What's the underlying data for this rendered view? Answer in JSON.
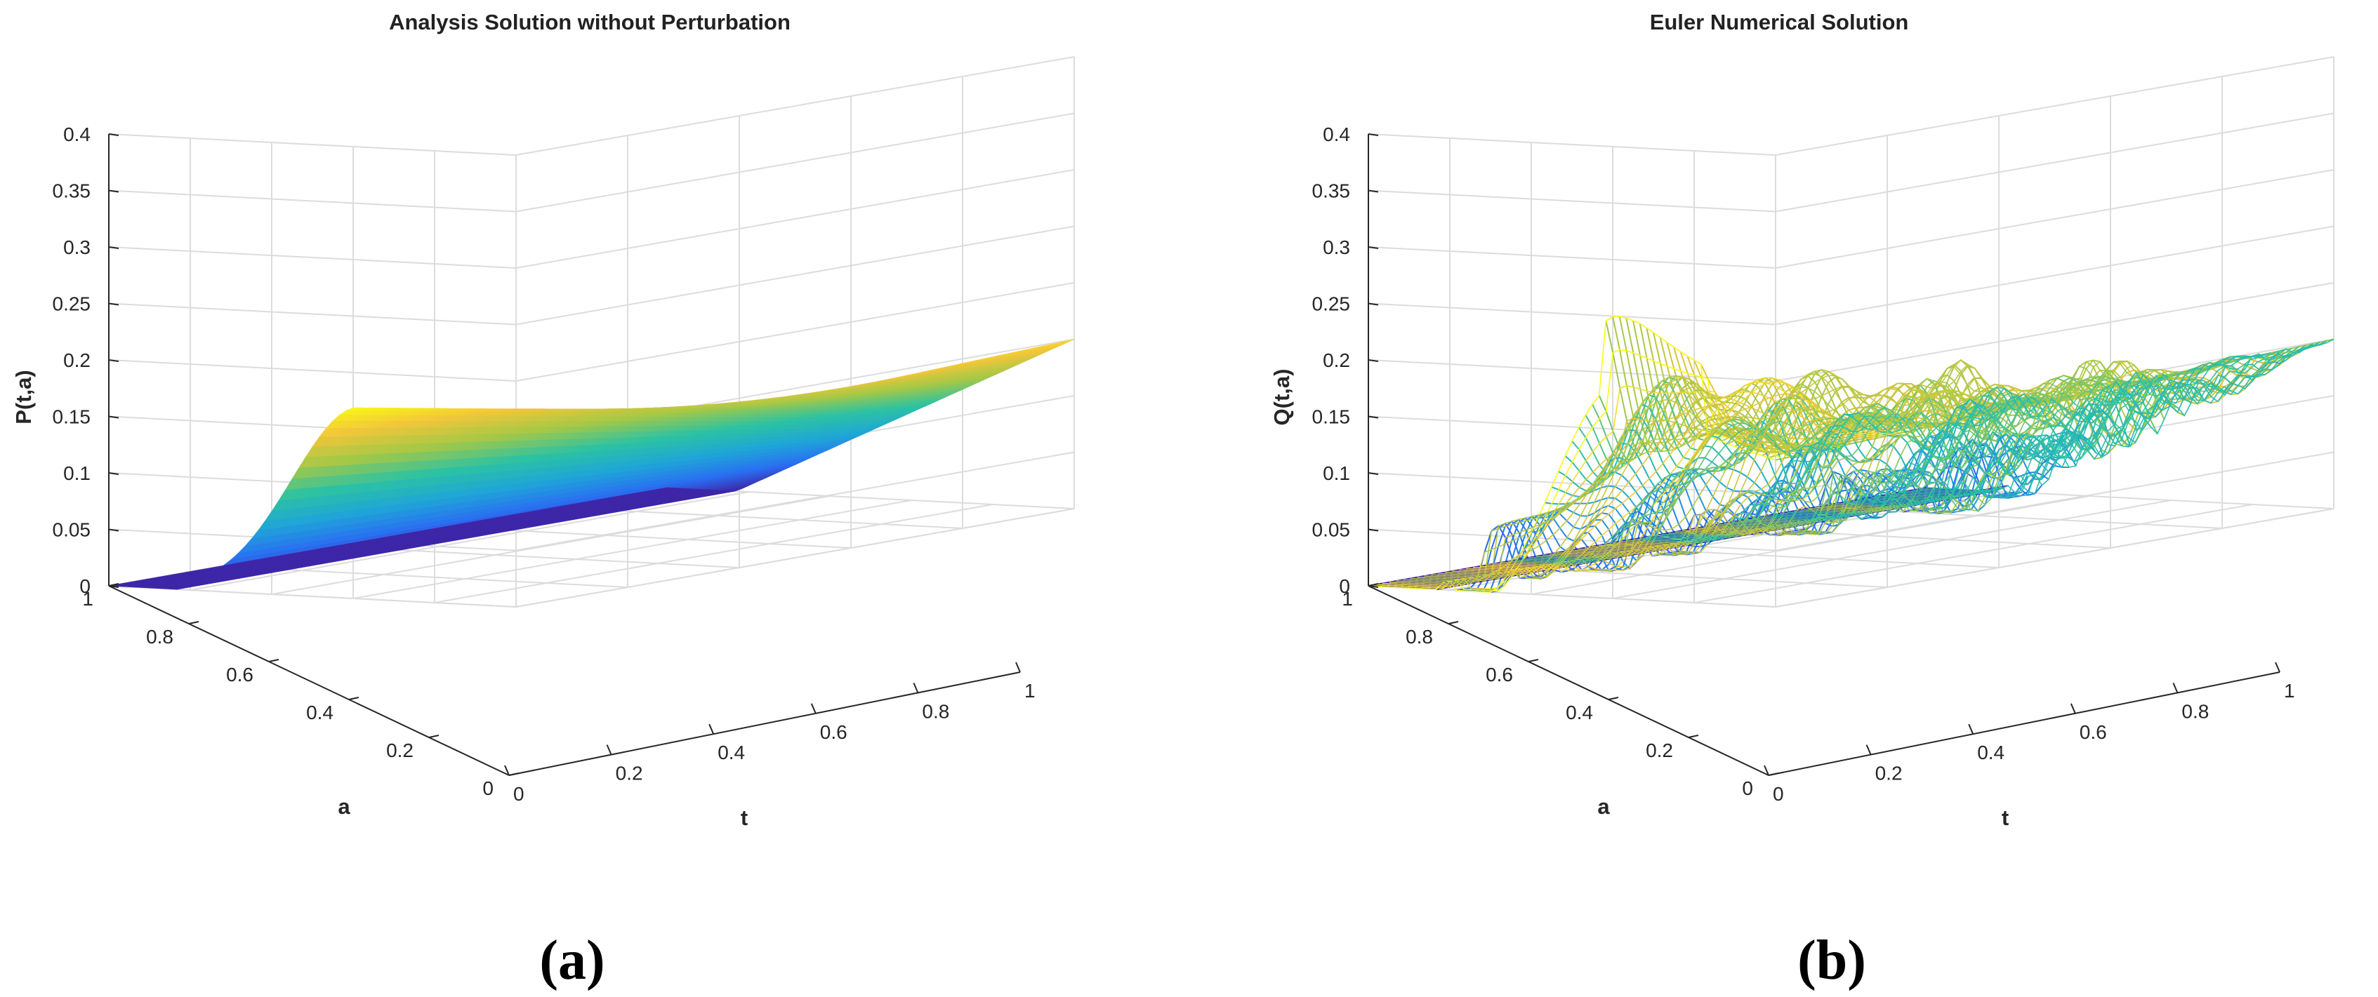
{
  "chart_data": [
    {
      "type": "surface",
      "title": "Analysis Solution without Perturbation",
      "xlabel": "t",
      "ylabel": "a",
      "zlabel": "P(t,a)",
      "caption": "(a)",
      "xlim": [
        0,
        1
      ],
      "ylim": [
        0,
        1
      ],
      "zlim": [
        0,
        0.4
      ],
      "xticks": [
        "0",
        "0.2",
        "0.4",
        "0.6",
        "0.8",
        "1"
      ],
      "yticks": [
        "0",
        "0.2",
        "0.4",
        "0.6",
        "0.8",
        "1"
      ],
      "zticks": [
        "0",
        "0.05",
        "0.1",
        "0.15",
        "0.2",
        "0.25",
        "0.3",
        "0.35",
        "0.4"
      ],
      "colormap": [
        "#3e26a8",
        "#2a6ff2",
        "#1fa5d8",
        "#2cc2a3",
        "#a6c846",
        "#f2c63a",
        "#f9fb15"
      ],
      "grid": true,
      "style": "smooth",
      "surface_points": [
        {
          "t": 0,
          "a": 1,
          "P": 0
        },
        {
          "t": 0,
          "a": 0.83,
          "P": 0
        },
        {
          "t": 0,
          "a": 0.6,
          "P": 0.1
        },
        {
          "t": 0,
          "a": 0.4,
          "P": 0.17
        },
        {
          "t": 0,
          "a": 0,
          "P": 0.13
        },
        {
          "t": 0.5,
          "a": 0,
          "P": 0.14
        },
        {
          "t": 1,
          "a": 0,
          "P": 0.15
        },
        {
          "t": 1,
          "a": 1,
          "P": 0
        }
      ]
    },
    {
      "type": "surface",
      "title": "Euler Numerical Solution",
      "xlabel": "t",
      "ylabel": "a",
      "zlabel": "Q(t,a)",
      "caption": "(b)",
      "xlim": [
        0,
        1
      ],
      "ylim": [
        0,
        1
      ],
      "zlim": [
        0,
        0.4
      ],
      "xticks": [
        "0",
        "0.2",
        "0.4",
        "0.6",
        "0.8",
        "1"
      ],
      "yticks": [
        "0",
        "0.2",
        "0.4",
        "0.6",
        "0.8",
        "1"
      ],
      "zticks": [
        "0",
        "0.05",
        "0.1",
        "0.15",
        "0.2",
        "0.25",
        "0.3",
        "0.35",
        "0.4"
      ],
      "colormap": [
        "#3e26a8",
        "#2a6ff2",
        "#1fa5d8",
        "#2cc2a3",
        "#a6c846",
        "#f2c63a",
        "#f9fb15"
      ],
      "grid": true,
      "style": "mesh",
      "surface_points": [
        {
          "t": 0,
          "a": 1,
          "Q": 0
        },
        {
          "t": 0,
          "a": 0.83,
          "Q": 0
        },
        {
          "t": 0,
          "a": 0.4,
          "Q": 0.17
        },
        {
          "t": 0,
          "a": 0.3,
          "Q": 0.2
        },
        {
          "t": 0.1,
          "a": 0.3,
          "Q": 0.05
        },
        {
          "t": 0.5,
          "a": 0.2,
          "Q": 0.15
        },
        {
          "t": 0.7,
          "a": 0.1,
          "Q": 0.17
        },
        {
          "t": 1,
          "a": 0,
          "Q": 0.14
        }
      ]
    }
  ]
}
